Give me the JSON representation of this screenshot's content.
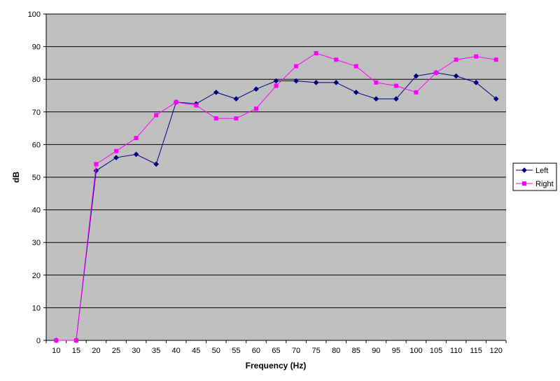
{
  "chart_data": {
    "type": "line",
    "title": "",
    "xlabel": "Frequency (Hz)",
    "ylabel": "dB",
    "x": [
      10,
      15,
      20,
      25,
      30,
      35,
      40,
      45,
      50,
      55,
      60,
      65,
      70,
      75,
      80,
      85,
      90,
      95,
      100,
      105,
      110,
      115,
      120
    ],
    "ylim": [
      0,
      100
    ],
    "yticks": [
      0,
      10,
      20,
      30,
      40,
      50,
      60,
      70,
      80,
      90,
      100
    ],
    "grid": true,
    "legend_position": "right",
    "plot_background": "#c0c0c0",
    "series": [
      {
        "name": "Left",
        "color": "#000080",
        "marker": "diamond",
        "values": [
          0,
          0,
          52,
          56,
          57,
          54,
          73,
          72.5,
          76,
          74,
          77,
          79.5,
          79.5,
          79,
          79,
          76,
          74,
          74,
          81,
          82,
          81,
          79,
          74
        ]
      },
      {
        "name": "Right",
        "color": "#ff00ff",
        "marker": "square",
        "values": [
          0,
          0,
          54,
          58,
          62,
          69,
          73,
          72,
          68,
          68,
          71,
          78,
          84,
          88,
          86,
          84,
          79,
          78,
          76,
          82,
          86,
          87,
          86
        ]
      }
    ]
  }
}
